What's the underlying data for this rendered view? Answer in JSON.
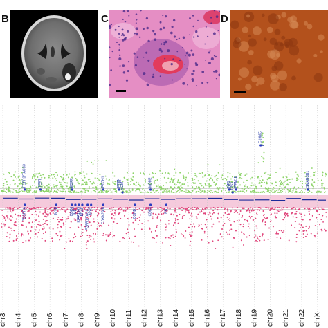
{
  "panels": {
    "b": {
      "letter": "B"
    },
    "c": {
      "letter": "C"
    },
    "d": {
      "letter": "D"
    }
  },
  "colors": {
    "gain": "#8fd46b",
    "loss": "#e0457b",
    "segment": "#1a2a9a",
    "gene": "#2a3cc0",
    "band": "#f3c1d6",
    "he_bg": "#e58ec4",
    "ihc_bg": "#b7561f"
  },
  "chromosomes": [
    "chr3",
    "chr4",
    "chr5",
    "chr6",
    "chr7",
    "chr8",
    "chr9",
    "chr10",
    "chr11",
    "chr12",
    "chr13",
    "chr14",
    "chr15",
    "chr16",
    "chr17",
    "chr18",
    "chr19",
    "chr20",
    "chr21",
    "chr22",
    "chrX"
  ],
  "genes": [
    {
      "name": "FGFR3/TACC3",
      "chr": "chr4",
      "side": "gain"
    },
    {
      "name": "PDGFRA",
      "chr": "chr4",
      "side": "loss"
    },
    {
      "name": "TERT",
      "chr": "chr5",
      "side": "gain"
    },
    {
      "name": "EGFR",
      "chr": "chr7",
      "side": "gain"
    },
    {
      "name": "MYB",
      "chr": "chr6",
      "side": "loss"
    },
    {
      "name": "CDK6",
      "chr": "chr7",
      "side": "loss"
    },
    {
      "name": "MET",
      "chr": "chr7",
      "side": "loss"
    },
    {
      "name": "KIAA1549",
      "chr": "chr7",
      "side": "loss"
    },
    {
      "name": "BRAF",
      "chr": "chr7",
      "side": "loss"
    },
    {
      "name": "FGFR1/TACC1",
      "chr": "chr8",
      "side": "loss"
    },
    {
      "name": "MYC",
      "chr": "chr8",
      "side": "loss"
    },
    {
      "name": "CDKN2A/B",
      "chr": "chr9",
      "side": "loss"
    },
    {
      "name": "PTCH1",
      "chr": "chr9",
      "side": "gain"
    },
    {
      "name": "PTEN",
      "chr": "chr10",
      "side": "gain"
    },
    {
      "name": "MGMT",
      "chr": "chr10",
      "side": "gain"
    },
    {
      "name": "MDM2",
      "chr": "chr12",
      "side": "gain"
    },
    {
      "name": "CCND1",
      "chr": "chr11",
      "side": "loss"
    },
    {
      "name": "CDK4",
      "chr": "chr12",
      "side": "loss"
    },
    {
      "name": "RB1",
      "chr": "chr13",
      "side": "loss"
    },
    {
      "name": "NF1",
      "chr": "chr17",
      "side": "gain"
    },
    {
      "name": "TP53",
      "chr": "chr17",
      "side": "gain"
    },
    {
      "name": "PPM1D",
      "chr": "chr17",
      "side": "gain"
    },
    {
      "name": "C19MC",
      "chr": "chr19",
      "side": "gain"
    },
    {
      "name": "SMARCB1",
      "chr": "chr22",
      "side": "gain"
    }
  ]
}
